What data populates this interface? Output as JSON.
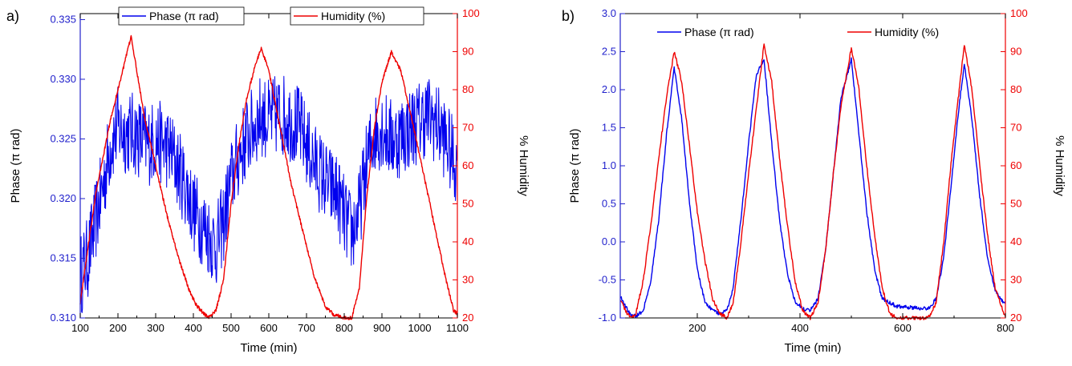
{
  "chart_data": [
    {
      "type": "line",
      "panel_label": "a)",
      "xlabel": "Time (min)",
      "ylabel": "Phase (π rad)",
      "y2label": "% Humidity",
      "xlim": [
        100,
        1100
      ],
      "ylim": [
        0.31,
        0.3355
      ],
      "y2lim": [
        20,
        100
      ],
      "xticks": [
        "100",
        "200",
        "300",
        "400",
        "500",
        "600",
        "700",
        "800",
        "900",
        "1000",
        "1100"
      ],
      "yticks": [
        "0.310",
        "0.315",
        "0.320",
        "0.325",
        "0.330",
        "0.335"
      ],
      "y2ticks": [
        "20",
        "30",
        "40",
        "50",
        "60",
        "70",
        "80",
        "90",
        "100"
      ],
      "legend_position": "top",
      "series": [
        {
          "name": "Phase (π rad)",
          "axis": "left",
          "color": "#0000ee",
          "x": [
            100,
            120,
            140,
            160,
            180,
            200,
            220,
            240,
            260,
            280,
            300,
            320,
            340,
            360,
            380,
            400,
            420,
            440,
            460,
            480,
            500,
            520,
            540,
            560,
            580,
            600,
            620,
            640,
            660,
            680,
            700,
            720,
            740,
            760,
            780,
            800,
            820,
            840,
            860,
            880,
            900,
            920,
            940,
            960,
            980,
            1000,
            1020,
            1040,
            1060,
            1080,
            1100
          ],
          "y": [
            0.3135,
            0.315,
            0.318,
            0.321,
            0.3245,
            0.326,
            0.3255,
            0.3255,
            0.325,
            0.3245,
            0.325,
            0.3245,
            0.324,
            0.3225,
            0.321,
            0.319,
            0.318,
            0.317,
            0.316,
            0.318,
            0.3215,
            0.3235,
            0.325,
            0.326,
            0.327,
            0.3265,
            0.327,
            0.327,
            0.3265,
            0.326,
            0.3245,
            0.323,
            0.322,
            0.321,
            0.3205,
            0.3185,
            0.317,
            0.319,
            0.323,
            0.3255,
            0.326,
            0.325,
            0.325,
            0.3255,
            0.326,
            0.3265,
            0.327,
            0.3265,
            0.3255,
            0.324,
            0.3225
          ],
          "noise_amplitude": 0.0035
        },
        {
          "name": "Humidity (%)",
          "axis": "right",
          "color": "#ee0000",
          "x": [
            100,
            120,
            140,
            160,
            180,
            200,
            220,
            235,
            250,
            270,
            300,
            330,
            360,
            390,
            410,
            440,
            460,
            480,
            500,
            520,
            540,
            560,
            580,
            600,
            630,
            660,
            690,
            720,
            750,
            770,
            800,
            820,
            840,
            860,
            880,
            900,
            925,
            950,
            980,
            1010,
            1040,
            1070,
            1090,
            1100
          ],
          "y": [
            24,
            38,
            52,
            62,
            72,
            80,
            88,
            94,
            85,
            73,
            60,
            47,
            36,
            27,
            23,
            20,
            22,
            30,
            50,
            65,
            77,
            85,
            91,
            85,
            70,
            55,
            43,
            31,
            23,
            21,
            20,
            20,
            28,
            52,
            70,
            82,
            90,
            85,
            72,
            58,
            44,
            30,
            22,
            21
          ]
        }
      ]
    },
    {
      "type": "line",
      "panel_label": "b)",
      "xlabel": "Time (min)",
      "ylabel": "Phase (π rad)",
      "y2label": "% Humidity",
      "xlim": [
        50,
        800
      ],
      "ylim": [
        -1.0,
        3.0
      ],
      "y2lim": [
        20,
        100
      ],
      "xticks": [
        "200",
        "400",
        "600",
        "800"
      ],
      "xtick_values": [
        200,
        400,
        600,
        800
      ],
      "yticks": [
        "-1.0",
        "-0.5",
        "0.0",
        "0.5",
        "1.0",
        "1.5",
        "2.0",
        "2.5",
        "3.0"
      ],
      "y2ticks": [
        "20",
        "30",
        "40",
        "50",
        "60",
        "70",
        "80",
        "90",
        "100"
      ],
      "legend_position": "top",
      "series": [
        {
          "name": "Phase (π rad)",
          "axis": "left",
          "color": "#0000ee",
          "x": [
            50,
            60,
            70,
            80,
            95,
            110,
            125,
            140,
            155,
            170,
            185,
            200,
            215,
            230,
            245,
            258,
            270,
            285,
            300,
            315,
            330,
            345,
            360,
            375,
            390,
            405,
            420,
            435,
            450,
            465,
            480,
            500,
            515,
            530,
            545,
            560,
            575,
            590,
            610,
            630,
            650,
            665,
            680,
            695,
            710,
            720,
            735,
            750,
            765,
            780,
            795,
            800
          ],
          "y": [
            -0.7,
            -0.85,
            -0.95,
            -0.98,
            -0.9,
            -0.5,
            0.3,
            1.4,
            2.3,
            1.6,
            0.5,
            -0.35,
            -0.8,
            -0.9,
            -0.95,
            -0.9,
            -0.6,
            0.3,
            1.3,
            2.2,
            2.4,
            1.3,
            0.3,
            -0.4,
            -0.78,
            -0.88,
            -0.9,
            -0.75,
            -0.1,
            0.9,
            1.9,
            2.4,
            1.4,
            0.4,
            -0.35,
            -0.75,
            -0.8,
            -0.85,
            -0.86,
            -0.87,
            -0.88,
            -0.75,
            -0.2,
            0.8,
            1.8,
            2.35,
            1.6,
            0.6,
            -0.2,
            -0.65,
            -0.78,
            -0.8
          ]
        },
        {
          "name": "Humidity (%)",
          "axis": "right",
          "color": "#ee0000",
          "x": [
            50,
            60,
            70,
            80,
            95,
            110,
            125,
            140,
            155,
            170,
            185,
            200,
            215,
            230,
            245,
            258,
            270,
            285,
            300,
            315,
            330,
            345,
            360,
            375,
            390,
            405,
            420,
            435,
            450,
            465,
            480,
            500,
            515,
            530,
            545,
            560,
            575,
            590,
            610,
            630,
            650,
            665,
            680,
            695,
            710,
            720,
            735,
            750,
            765,
            780,
            795,
            800
          ],
          "y": [
            25,
            22,
            20,
            21,
            30,
            45,
            62,
            78,
            90,
            82,
            65,
            48,
            35,
            25,
            21,
            20,
            24,
            40,
            58,
            75,
            92,
            82,
            62,
            45,
            30,
            22,
            20,
            24,
            38,
            58,
            76,
            91,
            80,
            60,
            42,
            28,
            21,
            20,
            20,
            20,
            20,
            24,
            40,
            62,
            80,
            92,
            80,
            60,
            42,
            28,
            22,
            20
          ]
        }
      ]
    }
  ]
}
